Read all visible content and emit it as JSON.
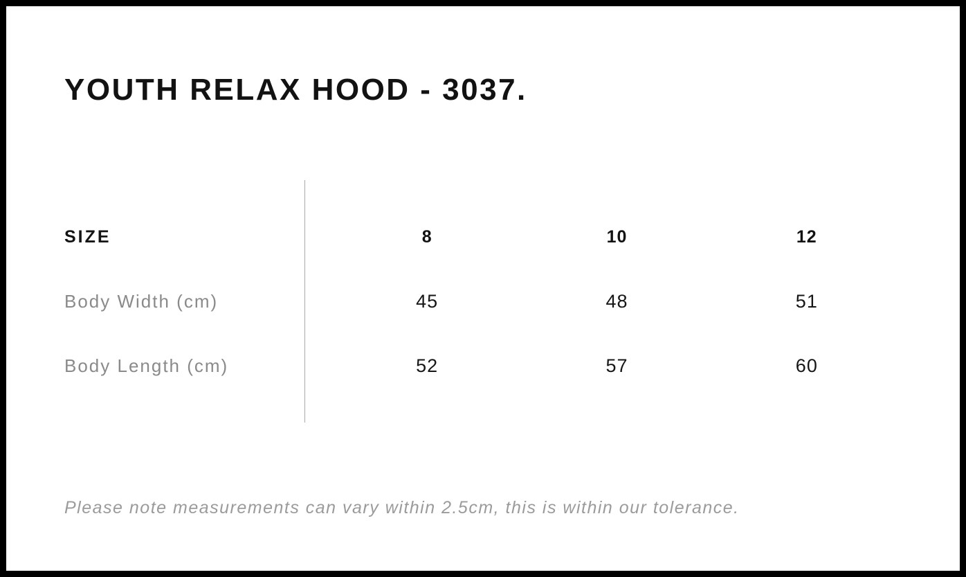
{
  "title": "YOUTH RELAX HOOD - 3037.",
  "size_chart": {
    "header_label": "SIZE",
    "columns": [
      "8",
      "10",
      "12"
    ],
    "rows": [
      {
        "label": "Body Width (cm)",
        "values": [
          "45",
          "48",
          "51"
        ]
      },
      {
        "label": "Body Length (cm)",
        "values": [
          "52",
          "57",
          "60"
        ]
      }
    ]
  },
  "note": "Please note measurements can vary within 2.5cm, this is within our tolerance.",
  "colors": {
    "page_border": "#000000",
    "text_primary": "#121212",
    "label_gray": "#8a8a8a",
    "note_gray": "#9b9b9b",
    "divider_gray": "#a8a8a8",
    "background": "#ffffff"
  },
  "chart_data": {
    "type": "table",
    "title": "YOUTH RELAX HOOD - 3037.",
    "columns": [
      "SIZE",
      "8",
      "10",
      "12"
    ],
    "rows": [
      [
        "Body Width (cm)",
        45,
        48,
        51
      ],
      [
        "Body Length (cm)",
        52,
        57,
        60
      ]
    ],
    "units": "cm",
    "footnote": "Please note measurements can vary within 2.5cm, this is within our tolerance.",
    "layout_hints": {
      "label_column_alignment": "left",
      "value_column_alignment": "center",
      "vertical_divider_after_label_column": true,
      "gridlines": false
    }
  }
}
